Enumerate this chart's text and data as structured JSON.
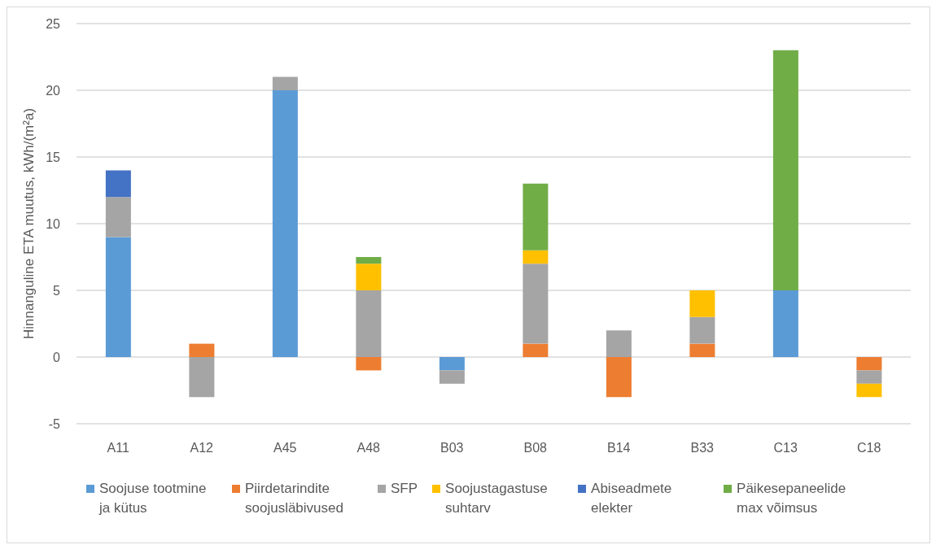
{
  "chart_data": {
    "type": "bar",
    "stacked": true,
    "ylabel": "Hinnanguline ETA muutus, kWh/(m²a)",
    "categories": [
      "A11",
      "A12",
      "A45",
      "A48",
      "B03",
      "B08",
      "B14",
      "B33",
      "C13",
      "C18"
    ],
    "series": [
      {
        "name": "Soojuse tootmine ja kütus",
        "color": "#5b9bd5",
        "values": [
          9,
          null,
          20,
          null,
          -1,
          null,
          null,
          null,
          5,
          null
        ]
      },
      {
        "name": "Piirdetarindite soojusläbivused",
        "color": "#ed7d31",
        "values": [
          null,
          1,
          null,
          -1,
          null,
          1,
          -3,
          1,
          null,
          -1
        ]
      },
      {
        "name": "SFP",
        "color": "#a5a5a5",
        "values": [
          3,
          -3,
          1,
          5,
          -1,
          6,
          2,
          2,
          null,
          -1
        ]
      },
      {
        "name": "Soojustagastuse suhtarv",
        "color": "#ffc000",
        "values": [
          null,
          null,
          null,
          2,
          null,
          1,
          null,
          2,
          null,
          -1
        ]
      },
      {
        "name": "Abiseadmete elekter",
        "color": "#4472c4",
        "values": [
          2,
          null,
          null,
          null,
          null,
          null,
          null,
          null,
          null,
          null
        ]
      },
      {
        "name": "Päikesepaneelide max võimsus",
        "color": "#70ad47",
        "values": [
          null,
          null,
          null,
          0.5,
          null,
          5,
          null,
          null,
          18,
          null
        ]
      }
    ],
    "ylim": [
      -5,
      25
    ],
    "yticks": [
      -5,
      0,
      5,
      10,
      15,
      20,
      25
    ],
    "grid": "y",
    "legend": "bottom"
  }
}
